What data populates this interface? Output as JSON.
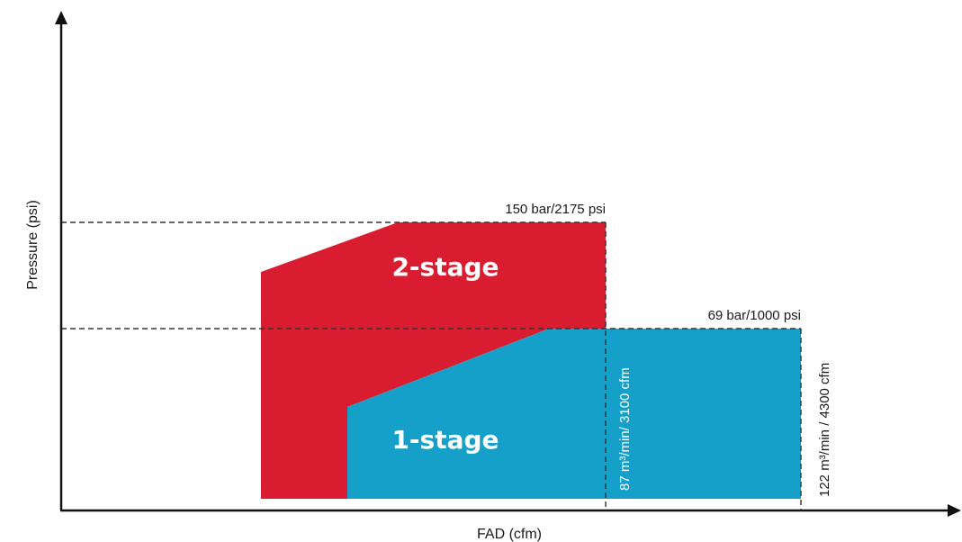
{
  "chart_data": {
    "type": "area",
    "xlabel": "FAD (cfm)",
    "ylabel": "Pressure (psi)",
    "colors": {
      "two_stage": "#da1c30",
      "one_stage": "#14a0c8",
      "axis": "#111111",
      "guide": "#333333"
    },
    "regions": [
      {
        "name": "2-stage",
        "label": "2-stage",
        "color": "#da1c30"
      },
      {
        "name": "1-stage",
        "label": "1-stage",
        "color": "#14a0c8"
      }
    ],
    "pressure_limits": [
      {
        "label": "150 bar/2175 psi",
        "psi": 2175
      },
      {
        "label": "69 bar/1000 psi",
        "psi": 1000
      }
    ],
    "flow_limits": [
      {
        "label": "87 m³/min/ 3100 cfm",
        "cfm": 3100
      },
      {
        "label": "122 m³/min / 4300 cfm",
        "cfm": 4300
      }
    ]
  }
}
